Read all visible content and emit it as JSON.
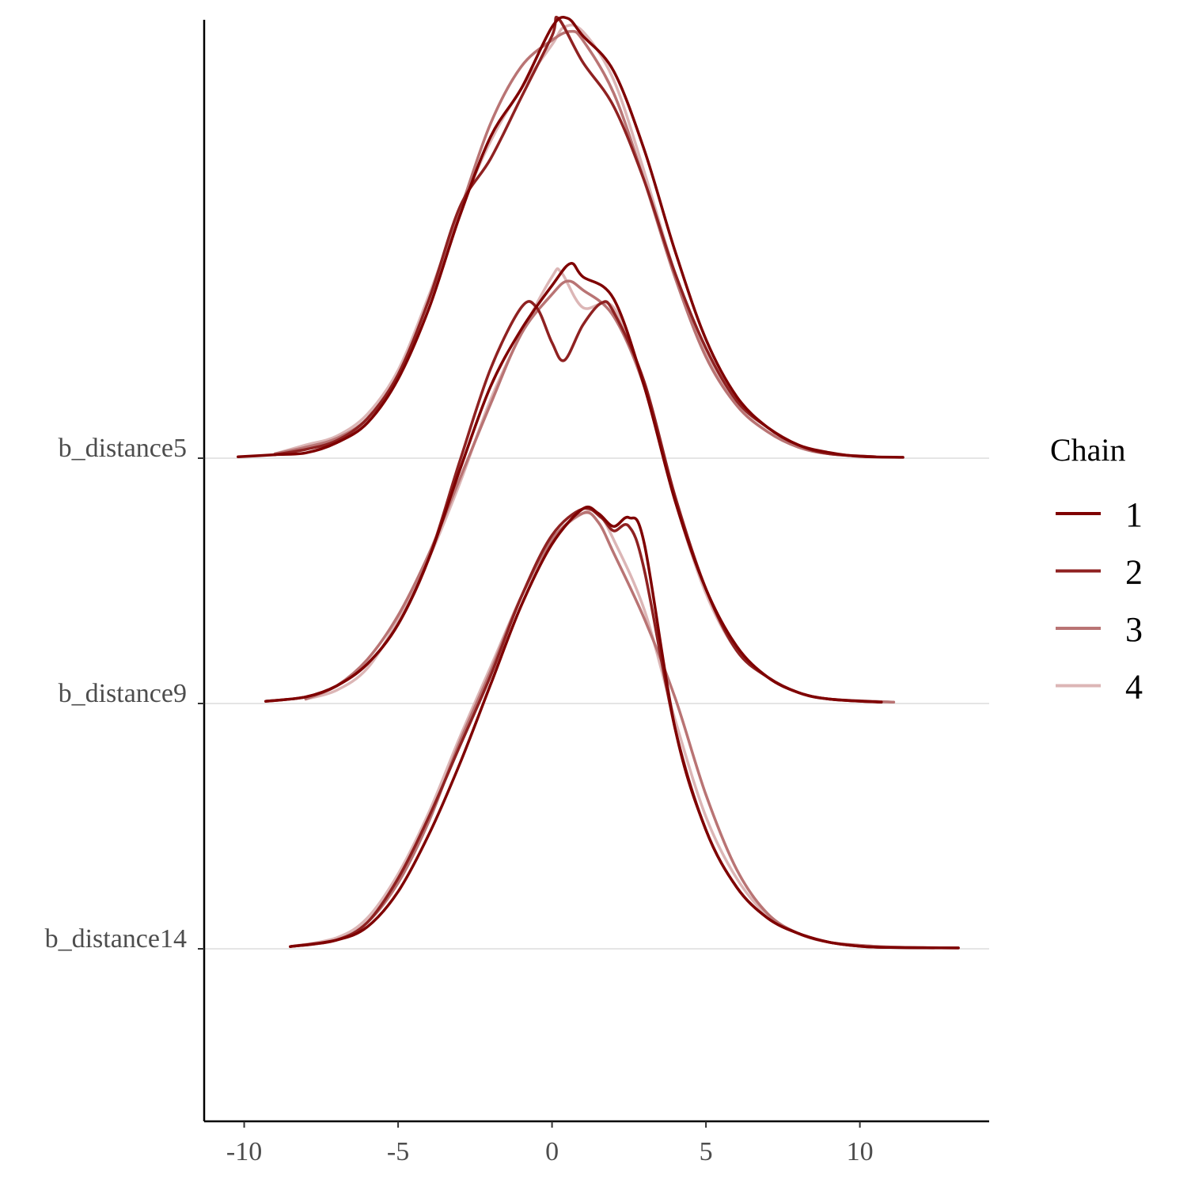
{
  "chart_data": {
    "type": "line",
    "subtype": "ridgeline-density",
    "title": "",
    "xlabel": "",
    "ylabel": "",
    "xlim": [
      -11.3,
      14.2
    ],
    "x_ticks": [
      -10,
      -5,
      0,
      5,
      10
    ],
    "x_tick_labels": [
      "-10",
      "-5",
      "0",
      "5",
      "10"
    ],
    "categories": [
      "b_distance5",
      "b_distance9",
      "b_distance14"
    ],
    "grid": "horizontal baselines only",
    "legend": {
      "title": "Chain",
      "placement": "right",
      "entries": [
        {
          "label": "1",
          "color": "#7f0000"
        },
        {
          "label": "2",
          "color": "#8f2121"
        },
        {
          "label": "3",
          "color": "#b97474"
        },
        {
          "label": "4",
          "color": "#dcb6b6"
        }
      ]
    },
    "ridges": [
      {
        "parameter": "b_distance5",
        "series": [
          {
            "chain": "1",
            "x": [
              -10.2,
              -9,
              -8,
              -7,
              -6,
              -5,
              -4,
              -3,
              -2,
              -1,
              0,
              0.5,
              1,
              2,
              3,
              4,
              5,
              6,
              7,
              8,
              9,
              10,
              11.4
            ],
            "density": [
              0.003,
              0.008,
              0.012,
              0.035,
              0.08,
              0.18,
              0.34,
              0.55,
              0.73,
              0.84,
              0.98,
              1,
              0.96,
              0.88,
              0.7,
              0.47,
              0.27,
              0.14,
              0.07,
              0.03,
              0.013,
              0.004,
              0.002
            ]
          },
          {
            "chain": "2",
            "x": [
              -9,
              -8,
              -7,
              -6,
              -5,
              -4,
              -3,
              -2,
              -1,
              0,
              0.2,
              1,
              2,
              3,
              4,
              5,
              6,
              7,
              8,
              9,
              10.5
            ],
            "density": [
              0.008,
              0.02,
              0.04,
              0.09,
              0.19,
              0.36,
              0.57,
              0.68,
              0.82,
              0.96,
              1,
              0.9,
              0.8,
              0.63,
              0.42,
              0.25,
              0.13,
              0.07,
              0.03,
              0.01,
              0.003
            ]
          },
          {
            "chain": "3",
            "x": [
              -9,
              -8,
              -7,
              -6,
              -5,
              -4,
              -3,
              -2,
              -1,
              0,
              0.6,
              1,
              2,
              3,
              4,
              5,
              6,
              7,
              8,
              9,
              10.5
            ],
            "density": [
              0.01,
              0.025,
              0.045,
              0.09,
              0.19,
              0.36,
              0.56,
              0.76,
              0.89,
              0.95,
              0.97,
              0.95,
              0.83,
              0.63,
              0.41,
              0.23,
              0.12,
              0.06,
              0.025,
              0.01,
              0.003
            ]
          },
          {
            "chain": "4",
            "x": [
              -9,
              -8,
              -7,
              -6,
              -5,
              -4,
              -3,
              -2,
              -1,
              0,
              0.4,
              1,
              2,
              3,
              4,
              5,
              6,
              7,
              8,
              9,
              10.5
            ],
            "density": [
              0.01,
              0.03,
              0.05,
              0.1,
              0.2,
              0.37,
              0.56,
              0.72,
              0.84,
              0.94,
              0.98,
              0.97,
              0.86,
              0.65,
              0.42,
              0.24,
              0.12,
              0.06,
              0.025,
              0.01,
              0.003
            ]
          }
        ]
      },
      {
        "parameter": "b_distance9",
        "series": [
          {
            "chain": "1",
            "x": [
              -9.3,
              -8,
              -7,
              -6,
              -5,
              -4,
              -3,
              -2,
              -1,
              0,
              0.6,
              1,
              2,
              3,
              4,
              5,
              6,
              7,
              8,
              9,
              10.7
            ],
            "density": [
              0.005,
              0.015,
              0.04,
              0.09,
              0.18,
              0.33,
              0.53,
              0.72,
              0.85,
              0.95,
              1,
              0.97,
              0.92,
              0.72,
              0.46,
              0.26,
              0.13,
              0.06,
              0.025,
              0.01,
              0.003
            ]
          },
          {
            "chain": "2",
            "x": [
              -9.3,
              -8,
              -7,
              -6,
              -5,
              -4,
              -3,
              -2,
              -1,
              -0.5,
              0,
              0.4,
              1,
              1.6,
              2,
              3,
              4,
              5,
              6,
              7,
              8,
              9,
              10.7
            ],
            "density": [
              0.005,
              0.015,
              0.04,
              0.09,
              0.18,
              0.33,
              0.55,
              0.76,
              0.9,
              0.9,
              0.82,
              0.78,
              0.86,
              0.91,
              0.89,
              0.73,
              0.47,
              0.26,
              0.12,
              0.06,
              0.025,
              0.01,
              0.003
            ]
          },
          {
            "chain": "3",
            "x": [
              -8,
              -7,
              -6,
              -5,
              -4,
              -3,
              -2,
              -1,
              0,
              0.5,
              1,
              2,
              3,
              4,
              5,
              6,
              7,
              8,
              9,
              11.1
            ],
            "density": [
              0.01,
              0.04,
              0.1,
              0.2,
              0.34,
              0.51,
              0.68,
              0.84,
              0.93,
              0.96,
              0.94,
              0.88,
              0.72,
              0.47,
              0.26,
              0.13,
              0.06,
              0.025,
              0.01,
              0.003
            ]
          },
          {
            "chain": "4",
            "x": [
              -8,
              -7,
              -6,
              -5,
              -4,
              -3,
              -2,
              -1,
              0,
              0.3,
              1,
              2,
              3,
              4,
              5,
              6,
              7,
              8,
              9,
              11.1
            ],
            "density": [
              0.01,
              0.03,
              0.08,
              0.19,
              0.33,
              0.5,
              0.69,
              0.84,
              0.97,
              0.98,
              0.9,
              0.9,
              0.72,
              0.46,
              0.25,
              0.12,
              0.06,
              0.025,
              0.01,
              0.003
            ]
          }
        ]
      },
      {
        "parameter": "b_distance14",
        "series": [
          {
            "chain": "1",
            "x": [
              -8.5,
              -7,
              -6,
              -5,
              -4,
              -3,
              -2,
              -1,
              0,
              1,
              1.5,
              2,
              2.5,
              3,
              4,
              5,
              6,
              7,
              8,
              9,
              10,
              11,
              13.2
            ],
            "density": [
              0.005,
              0.02,
              0.05,
              0.13,
              0.26,
              0.42,
              0.6,
              0.78,
              0.92,
              1,
              0.99,
              0.96,
              0.98,
              0.92,
              0.5,
              0.27,
              0.14,
              0.07,
              0.035,
              0.015,
              0.006,
              0.003,
              0.002
            ]
          },
          {
            "chain": "2",
            "x": [
              -8.5,
              -7,
              -6,
              -5,
              -4,
              -3,
              -2,
              -1,
              0,
              1,
              1.6,
              2,
              2.5,
              3,
              4,
              5,
              6,
              7,
              8,
              9,
              10,
              11,
              13.2
            ],
            "density": [
              0.005,
              0.02,
              0.06,
              0.16,
              0.3,
              0.46,
              0.62,
              0.8,
              0.94,
              1,
              0.98,
              0.95,
              0.96,
              0.86,
              0.5,
              0.27,
              0.14,
              0.07,
              0.035,
              0.015,
              0.006,
              0.003,
              0.002
            ]
          },
          {
            "chain": "3",
            "x": [
              -8.5,
              -7,
              -6,
              -5,
              -4,
              -3,
              -2,
              -1,
              0,
              1,
              1.5,
              2,
              3,
              4,
              5,
              6,
              7,
              8,
              9,
              10,
              11,
              12.4
            ],
            "density": [
              0.005,
              0.02,
              0.06,
              0.15,
              0.29,
              0.47,
              0.63,
              0.8,
              0.93,
              0.99,
              0.97,
              0.9,
              0.75,
              0.57,
              0.35,
              0.18,
              0.08,
              0.035,
              0.015,
              0.008,
              0.004,
              0.002
            ]
          },
          {
            "chain": "4",
            "x": [
              -8.5,
              -7,
              -6,
              -5,
              -4,
              -3,
              -2,
              -1,
              0,
              1,
              1.5,
              2,
              3,
              4,
              5,
              6,
              7,
              8,
              9,
              10,
              11,
              12.4
            ],
            "density": [
              0.005,
              0.025,
              0.07,
              0.17,
              0.31,
              0.48,
              0.64,
              0.8,
              0.93,
              0.99,
              0.99,
              0.93,
              0.77,
              0.52,
              0.3,
              0.16,
              0.075,
              0.035,
              0.015,
              0.008,
              0.004,
              0.002
            ]
          }
        ]
      }
    ]
  }
}
